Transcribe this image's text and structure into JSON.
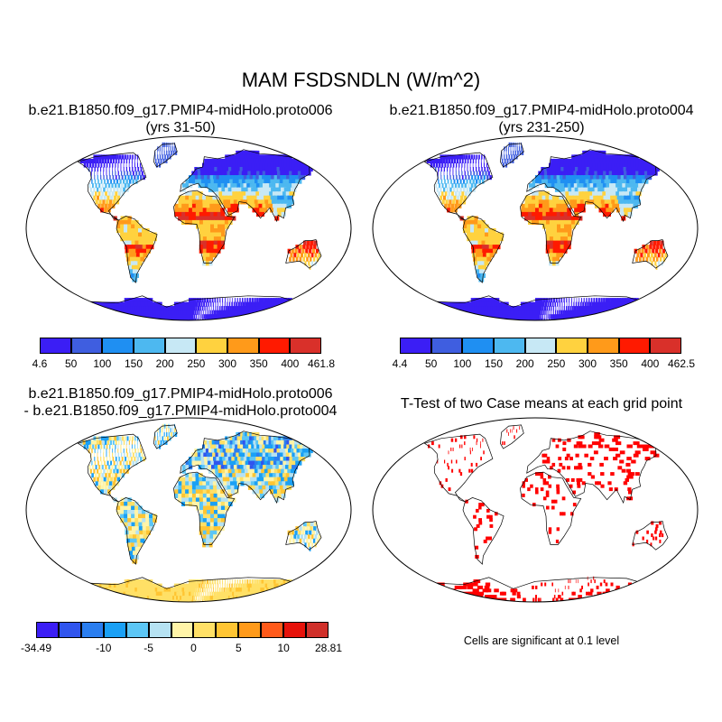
{
  "figure": {
    "title": "MAM FSDSNDLN (W/m^2)"
  },
  "panels": [
    {
      "id": "case1",
      "title_line1": "b.e21.B1850.f09_g17.PMIP4-midHolo.proto006",
      "title_line2": "(yrs 31-50)",
      "colorbar": {
        "colors": [
          "#3b1ef5",
          "#3f5ee0",
          "#1f8ff2",
          "#4db8f0",
          "#c7e8f5",
          "#ffd23f",
          "#ff9a1a",
          "#ff1a00",
          "#d9302a"
        ],
        "labels": [
          "4.6",
          "50",
          "100",
          "150",
          "200",
          "250",
          "300",
          "350",
          "400",
          "461.8"
        ]
      }
    },
    {
      "id": "case2",
      "title_line1": "b.e21.B1850.f09_g17.PMIP4-midHolo.proto004",
      "title_line2": "(yrs 231-250)",
      "colorbar": {
        "colors": [
          "#3b1ef5",
          "#3f5ee0",
          "#1f8ff2",
          "#4db8f0",
          "#c7e8f5",
          "#ffd23f",
          "#ff9a1a",
          "#ff1a00",
          "#d9302a"
        ],
        "labels": [
          "4.4",
          "50",
          "100",
          "150",
          "200",
          "250",
          "300",
          "350",
          "400",
          "462.5"
        ]
      }
    },
    {
      "id": "diff",
      "title_line1": "b.e21.B1850.f09_g17.PMIP4-midHolo.proto006",
      "title_line2": "- b.e21.B1850.f09_g17.PMIP4-midHolo.proto004",
      "colorbar": {
        "colors": [
          "#3b1ef5",
          "#3055ee",
          "#2a7ef0",
          "#1aa0f5",
          "#5cc6f5",
          "#b6e2f2",
          "#fff4a8",
          "#ffe066",
          "#ffc533",
          "#ff9a1a",
          "#ff5a1a",
          "#e6120a",
          "#d0302a"
        ],
        "labels": [
          "-34.49",
          "-10",
          "-5",
          "0",
          "5",
          "10",
          "28.81"
        ]
      }
    },
    {
      "id": "ttest",
      "title_line1": "T-Test of two Case means at each grid point",
      "note": "Cells are significant at 0.1 level"
    }
  ]
}
